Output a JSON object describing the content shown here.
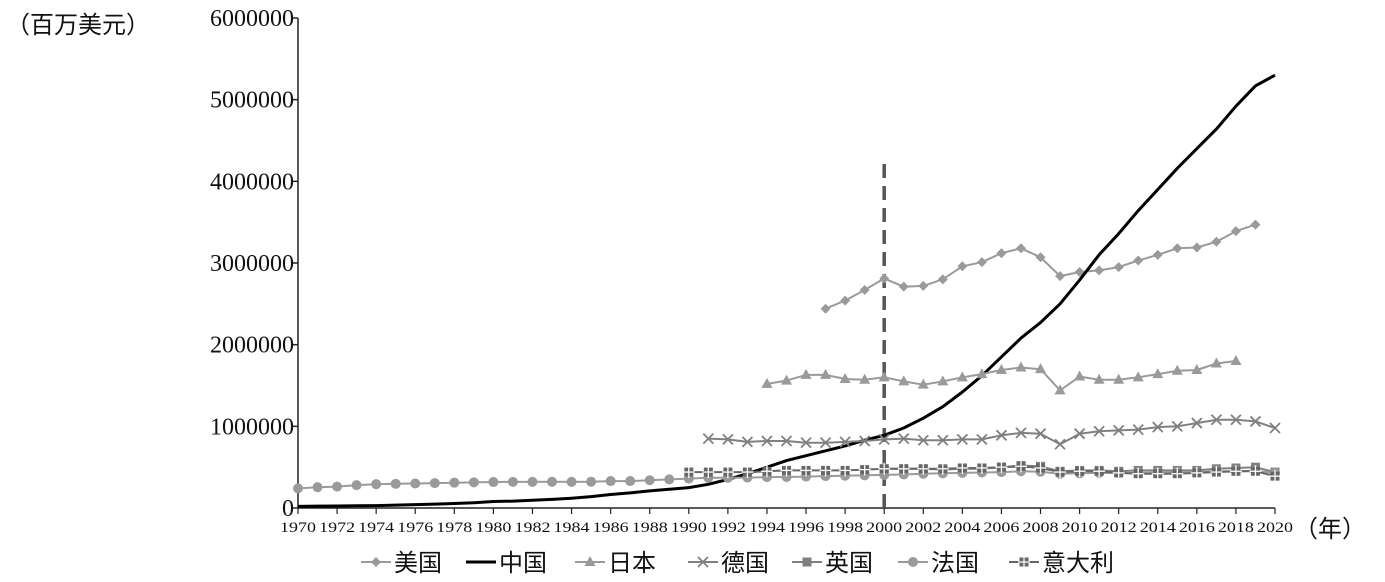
{
  "chart_data": {
    "type": "line",
    "ylabel": "（百万美元）",
    "xlabel": "（年）",
    "ylim": [
      0,
      6000000
    ],
    "yticks": [
      "0",
      "1000000",
      "2000000",
      "3000000",
      "4000000",
      "5000000",
      "6000000"
    ],
    "xlim": [
      1970,
      2020
    ],
    "xticks": [
      "1970",
      "1972",
      "1974",
      "1976",
      "1978",
      "1980",
      "1982",
      "1984",
      "1986",
      "1988",
      "1990",
      "1992",
      "1994",
      "1996",
      "1998",
      "2000",
      "2002",
      "2004",
      "2006",
      "2008",
      "2010",
      "2012",
      "2014",
      "2016",
      "2018",
      "2020"
    ],
    "grid": false,
    "legend_position": "bottom",
    "reference_line": {
      "x": 2000,
      "style": "dashed",
      "color": "#555555",
      "y_top": 4300000
    },
    "series": [
      {
        "name": "美国",
        "color": "#9a9a9a",
        "marker": "diamond",
        "width": 2,
        "x": [
          1997,
          1998,
          1999,
          2000,
          2001,
          2002,
          2003,
          2004,
          2005,
          2006,
          2007,
          2008,
          2009,
          2010,
          2011,
          2012,
          2013,
          2014,
          2015,
          2016,
          2017,
          2018,
          2019
        ],
        "values": [
          2440000,
          2540000,
          2670000,
          2810000,
          2710000,
          2720000,
          2800000,
          2960000,
          3010000,
          3120000,
          3180000,
          3070000,
          2840000,
          2890000,
          2910000,
          2950000,
          3030000,
          3100000,
          3180000,
          3190000,
          3260000,
          3390000,
          3470000
        ]
      },
      {
        "name": "中国",
        "color": "#000000",
        "marker": "none",
        "width": 3,
        "x": [
          1970,
          1971,
          1972,
          1973,
          1974,
          1975,
          1976,
          1977,
          1978,
          1979,
          1980,
          1981,
          1982,
          1983,
          1984,
          1985,
          1986,
          1987,
          1988,
          1989,
          1990,
          1991,
          1992,
          1993,
          1994,
          1995,
          1996,
          1997,
          1998,
          1999,
          2000,
          2001,
          2002,
          2003,
          2004,
          2005,
          2006,
          2007,
          2008,
          2009,
          2010,
          2011,
          2012,
          2013,
          2014,
          2015,
          2016,
          2017,
          2018,
          2019,
          2020
        ],
        "values": [
          20000,
          23000,
          25000,
          28000,
          30000,
          35000,
          42000,
          48000,
          55000,
          65000,
          80000,
          85000,
          95000,
          105000,
          120000,
          140000,
          165000,
          185000,
          210000,
          230000,
          250000,
          290000,
          350000,
          420000,
          500000,
          580000,
          640000,
          700000,
          760000,
          830000,
          890000,
          980000,
          1100000,
          1240000,
          1420000,
          1620000,
          1850000,
          2080000,
          2270000,
          2500000,
          2790000,
          3100000,
          3360000,
          3640000,
          3900000,
          4160000,
          4400000,
          4640000,
          4920000,
          5170000,
          5300000
        ]
      },
      {
        "name": "日本",
        "color": "#9a9a9a",
        "marker": "triangle",
        "width": 2,
        "x": [
          1994,
          1995,
          1996,
          1997,
          1998,
          1999,
          2000,
          2001,
          2002,
          2003,
          2004,
          2005,
          2006,
          2007,
          2008,
          2009,
          2010,
          2011,
          2012,
          2013,
          2014,
          2015,
          2016,
          2017,
          2018
        ],
        "values": [
          1520000,
          1560000,
          1630000,
          1630000,
          1580000,
          1570000,
          1600000,
          1550000,
          1510000,
          1550000,
          1600000,
          1640000,
          1690000,
          1720000,
          1700000,
          1440000,
          1610000,
          1570000,
          1570000,
          1600000,
          1640000,
          1680000,
          1690000,
          1770000,
          1800000
        ]
      },
      {
        "name": "德国",
        "color": "#808080",
        "marker": "x",
        "width": 2,
        "x": [
          1991,
          1992,
          1993,
          1994,
          1995,
          1996,
          1997,
          1998,
          1999,
          2000,
          2001,
          2002,
          2003,
          2004,
          2005,
          2006,
          2007,
          2008,
          2009,
          2010,
          2011,
          2012,
          2013,
          2014,
          2015,
          2016,
          2017,
          2018,
          2019,
          2020
        ],
        "values": [
          850000,
          840000,
          810000,
          820000,
          820000,
          800000,
          800000,
          810000,
          820000,
          840000,
          850000,
          830000,
          830000,
          840000,
          840000,
          890000,
          920000,
          910000,
          780000,
          910000,
          940000,
          950000,
          960000,
          990000,
          1000000,
          1040000,
          1080000,
          1080000,
          1060000,
          980000
        ]
      },
      {
        "name": "英国",
        "color": "#808080",
        "marker": "square",
        "width": 2,
        "x": [
          2000,
          2001,
          2002,
          2003,
          2004,
          2005,
          2006,
          2007,
          2008,
          2009,
          2010,
          2011,
          2012,
          2013,
          2014,
          2015,
          2016,
          2017,
          2018,
          2019,
          2020
        ],
        "values": [
          480000,
          480000,
          480000,
          470000,
          480000,
          480000,
          500000,
          520000,
          510000,
          450000,
          460000,
          460000,
          450000,
          460000,
          460000,
          460000,
          460000,
          480000,
          490000,
          500000,
          440000
        ]
      },
      {
        "name": "法国",
        "color": "#9a9a9a",
        "marker": "circle",
        "width": 2,
        "x": [
          1970,
          1971,
          1972,
          1973,
          1974,
          1975,
          1976,
          1977,
          1978,
          1979,
          1980,
          1981,
          1982,
          1983,
          1984,
          1985,
          1986,
          1987,
          1988,
          1989,
          1990,
          1991,
          1992,
          1993,
          1994,
          1995,
          1996,
          1997,
          1998,
          1999,
          2000,
          2001,
          2002,
          2003,
          2004,
          2005,
          2006,
          2007,
          2008,
          2009,
          2010,
          2011,
          2012,
          2013,
          2014,
          2015,
          2016,
          2017,
          2018,
          2019,
          2020
        ],
        "values": [
          240000,
          255000,
          262000,
          280000,
          292000,
          296000,
          300000,
          305000,
          310000,
          314000,
          318000,
          320000,
          320000,
          321000,
          320000,
          322000,
          330000,
          330000,
          340000,
          350000,
          360000,
          370000,
          370000,
          372000,
          378000,
          380000,
          385000,
          390000,
          395000,
          400000,
          405000,
          410000,
          420000,
          425000,
          430000,
          435000,
          440000,
          450000,
          445000,
          420000,
          425000,
          430000,
          428000,
          430000,
          435000,
          440000,
          440000,
          448000,
          452000,
          455000,
          430000
        ]
      },
      {
        "name": "意大利",
        "color": "#666666",
        "marker": "plus",
        "width": 2,
        "x": [
          1990,
          1991,
          1992,
          1993,
          1994,
          1995,
          1996,
          1997,
          1998,
          1999,
          2000,
          2001,
          2002,
          2003,
          2004,
          2005,
          2006,
          2007,
          2008,
          2009,
          2010,
          2011,
          2012,
          2013,
          2014,
          2015,
          2016,
          2017,
          2018,
          2019,
          2020
        ],
        "values": [
          440000,
          440000,
          440000,
          440000,
          450000,
          460000,
          460000,
          460000,
          460000,
          470000,
          480000,
          480000,
          480000,
          480000,
          490000,
          490000,
          500000,
          510000,
          490000,
          440000,
          450000,
          450000,
          430000,
          420000,
          420000,
          420000,
          430000,
          440000,
          450000,
          450000,
          390000
        ]
      }
    ]
  }
}
